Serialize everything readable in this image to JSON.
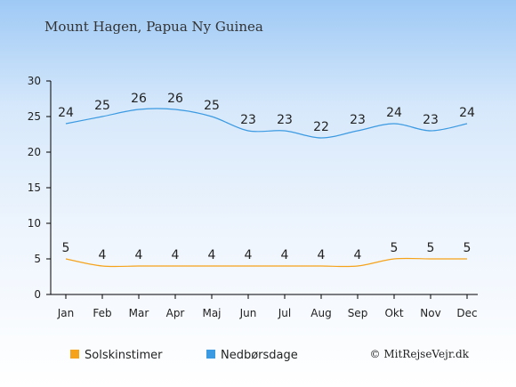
{
  "chart_data": {
    "type": "line",
    "title": "Mount Hagen, Papua Ny Guinea",
    "categories": [
      "Jan",
      "Feb",
      "Mar",
      "Apr",
      "Maj",
      "Jun",
      "Jul",
      "Aug",
      "Sep",
      "Okt",
      "Nov",
      "Dec"
    ],
    "ylim": [
      0,
      30
    ],
    "yticks": [
      "0",
      "5",
      "10",
      "15",
      "20",
      "25",
      "30"
    ],
    "grid": false,
    "legend_position": "bottom",
    "series": [
      {
        "name": "Solskinstimer",
        "color": "#f5a31a",
        "values": [
          5,
          4,
          4,
          4,
          4,
          4,
          4,
          4,
          4,
          5,
          5,
          5
        ],
        "labels": [
          "5",
          "4",
          "4",
          "4",
          "4",
          "4",
          "4",
          "4",
          "4",
          "5",
          "5",
          "5"
        ]
      },
      {
        "name": "Nedbørsdage",
        "color": "#3b9ae1",
        "values": [
          24,
          25,
          26,
          26,
          25,
          23,
          23,
          22,
          23,
          24,
          23,
          24
        ],
        "labels": [
          "24",
          "25",
          "26",
          "26",
          "25",
          "23",
          "23",
          "22",
          "23",
          "24",
          "23",
          "24"
        ]
      }
    ]
  },
  "credit": "© MitRejseVejr.dk"
}
